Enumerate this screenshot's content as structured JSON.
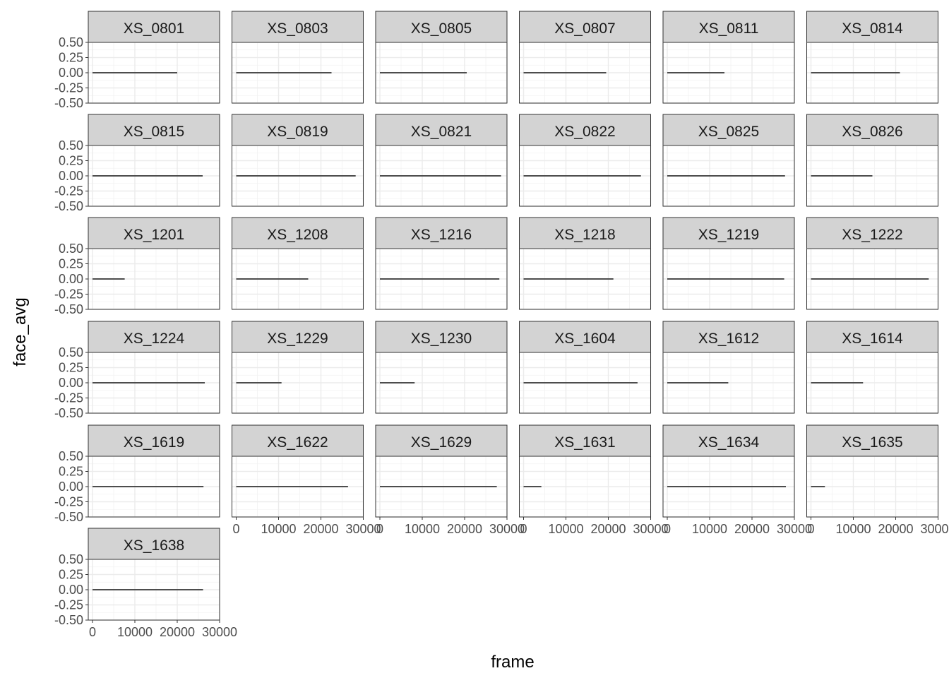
{
  "chart_data": {
    "type": "line",
    "xlabel": "frame",
    "ylabel": "face_avg",
    "xlim": [
      -1000,
      30000
    ],
    "ylim": [
      -0.5,
      0.5
    ],
    "x_ticks": [
      0,
      10000,
      20000,
      30000
    ],
    "x_tick_labels": [
      "0",
      "10000",
      "20000",
      "30000"
    ],
    "y_ticks": [
      0.5,
      0.25,
      0,
      -0.25,
      -0.5
    ],
    "y_tick_labels": [
      "0.50",
      "0.25",
      "0.00",
      "-0.25",
      "-0.50"
    ],
    "grid": true,
    "line_color": "#4d4d4d",
    "strip_fill": "#d3d3d3",
    "panels": [
      {
        "name": "XS_0801",
        "x": [
          0,
          20000
        ],
        "y": [
          0,
          0
        ]
      },
      {
        "name": "XS_0803",
        "x": [
          0,
          22500
        ],
        "y": [
          0,
          0
        ]
      },
      {
        "name": "XS_0805",
        "x": [
          0,
          20500
        ],
        "y": [
          0,
          0
        ]
      },
      {
        "name": "XS_0807",
        "x": [
          0,
          19500
        ],
        "y": [
          0,
          0
        ]
      },
      {
        "name": "XS_0811",
        "x": [
          0,
          13500
        ],
        "y": [
          0,
          0
        ]
      },
      {
        "name": "XS_0814",
        "x": [
          0,
          21000
        ],
        "y": [
          0,
          0
        ]
      },
      {
        "name": "XS_0815",
        "x": [
          0,
          26000
        ],
        "y": [
          0,
          0
        ]
      },
      {
        "name": "XS_0819",
        "x": [
          0,
          28200
        ],
        "y": [
          0,
          0
        ]
      },
      {
        "name": "XS_0821",
        "x": [
          0,
          28600
        ],
        "y": [
          0,
          0
        ]
      },
      {
        "name": "XS_0822",
        "x": [
          0,
          27700
        ],
        "y": [
          0,
          0
        ]
      },
      {
        "name": "XS_0825",
        "x": [
          0,
          27800
        ],
        "y": [
          0,
          0
        ]
      },
      {
        "name": "XS_0826",
        "x": [
          0,
          14500
        ],
        "y": [
          0,
          0
        ]
      },
      {
        "name": "XS_1201",
        "x": [
          0,
          7600
        ],
        "y": [
          0,
          0
        ]
      },
      {
        "name": "XS_1208",
        "x": [
          0,
          17000
        ],
        "y": [
          0,
          0
        ]
      },
      {
        "name": "XS_1216",
        "x": [
          0,
          28200
        ],
        "y": [
          0,
          0
        ]
      },
      {
        "name": "XS_1218",
        "x": [
          0,
          21200
        ],
        "y": [
          0,
          0
        ]
      },
      {
        "name": "XS_1219",
        "x": [
          0,
          27600
        ],
        "y": [
          0,
          0
        ]
      },
      {
        "name": "XS_1222",
        "x": [
          0,
          27800
        ],
        "y": [
          0,
          0
        ]
      },
      {
        "name": "XS_1224",
        "x": [
          0,
          26500
        ],
        "y": [
          0,
          0
        ]
      },
      {
        "name": "XS_1229",
        "x": [
          0,
          10700
        ],
        "y": [
          0,
          0
        ]
      },
      {
        "name": "XS_1230",
        "x": [
          0,
          8200
        ],
        "y": [
          0,
          0
        ]
      },
      {
        "name": "XS_1604",
        "x": [
          0,
          26900
        ],
        "y": [
          0,
          0
        ]
      },
      {
        "name": "XS_1612",
        "x": [
          0,
          14400
        ],
        "y": [
          0,
          0
        ]
      },
      {
        "name": "XS_1614",
        "x": [
          0,
          12300
        ],
        "y": [
          0,
          0
        ]
      },
      {
        "name": "XS_1619",
        "x": [
          0,
          26200
        ],
        "y": [
          0,
          0
        ]
      },
      {
        "name": "XS_1622",
        "x": [
          0,
          26400
        ],
        "y": [
          0,
          0
        ]
      },
      {
        "name": "XS_1629",
        "x": [
          0,
          27600
        ],
        "y": [
          0,
          0
        ]
      },
      {
        "name": "XS_1631",
        "x": [
          0,
          4200
        ],
        "y": [
          0,
          0
        ]
      },
      {
        "name": "XS_1634",
        "x": [
          0,
          28000
        ],
        "y": [
          0,
          0
        ]
      },
      {
        "name": "XS_1635",
        "x": [
          0,
          3300
        ],
        "y": [
          0,
          0
        ]
      },
      {
        "name": "XS_1638",
        "x": [
          0,
          26100
        ],
        "y": [
          0,
          0
        ]
      }
    ]
  }
}
